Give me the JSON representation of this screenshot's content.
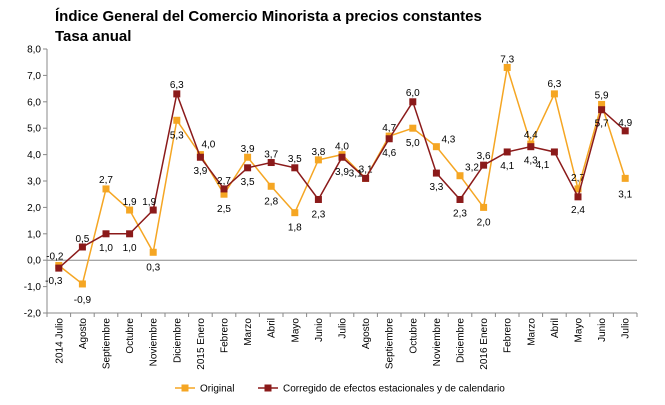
{
  "title": "Índice General del Comercio Minorista a precios constantes",
  "subtitle": "Tasa anual",
  "chart_data": {
    "type": "line",
    "ylim": [
      -2.0,
      8.0
    ],
    "yticks": [
      "-2,0",
      "-1,0",
      "0,0",
      "1,0",
      "2,0",
      "3,0",
      "4,0",
      "5,0",
      "6,0",
      "7,0",
      "8,0"
    ],
    "grid": false,
    "legend_position": "bottom",
    "categories": [
      "2014 Julio",
      "Agosto",
      "Septiembre",
      "Octubre",
      "Noviembre",
      "Diciembre",
      "2015 Enero",
      "Febrero",
      "Marzo",
      "Abril",
      "Mayo",
      "Junio",
      "Julio",
      "Agosto",
      "Septiembre",
      "Octubre",
      "Noviembre",
      "Diciembre",
      "2016 Enero",
      "Febrero",
      "Marzo",
      "Abril",
      "Mayo",
      "Junio",
      "Julio"
    ],
    "series": [
      {
        "name": "Original",
        "color": "#F5A623",
        "marker": "square",
        "values": [
          -0.2,
          -0.9,
          2.7,
          1.9,
          0.3,
          5.3,
          4.0,
          2.5,
          3.9,
          2.8,
          1.8,
          3.8,
          4.0,
          3.1,
          4.7,
          5.0,
          4.3,
          3.2,
          2.0,
          7.3,
          4.4,
          6.3,
          2.7,
          5.9,
          3.1
        ],
        "labels": [
          "-0,2",
          "-0,9",
          "2,7",
          "1,9",
          "0,3",
          "5,3",
          "4,0",
          "2,5",
          "3,9",
          "2,8",
          "1,8",
          "3,8",
          "4,0",
          "3,1",
          "4,7",
          "5,0",
          "4,3",
          "3,2",
          "2,0",
          "7,3",
          "4,4",
          "6,3",
          "2,7",
          "5,9",
          "3,1"
        ]
      },
      {
        "name": "Corregido de efectos estacionales y de calendario",
        "color": "#8B1A1A",
        "marker": "square",
        "values": [
          -0.3,
          0.5,
          1.0,
          1.0,
          1.9,
          6.3,
          3.9,
          2.7,
          3.5,
          3.7,
          3.5,
          2.3,
          3.9,
          3.1,
          4.6,
          6.0,
          3.3,
          2.3,
          3.6,
          4.1,
          4.3,
          4.1,
          2.4,
          5.7,
          4.9
        ],
        "labels": [
          "-0,3",
          "0,5",
          "1,0",
          "1,0",
          "1,9",
          "6,3",
          "3,9",
          "2,7",
          "3,5",
          "3,7",
          "3,5",
          "2,3",
          "3,9",
          "3,1",
          "4,6",
          "6,0",
          "3,3",
          "2,3",
          "3,6",
          "4,1",
          "4,3",
          "4,1",
          "2,4",
          "5,7",
          "4,9"
        ]
      }
    ]
  }
}
